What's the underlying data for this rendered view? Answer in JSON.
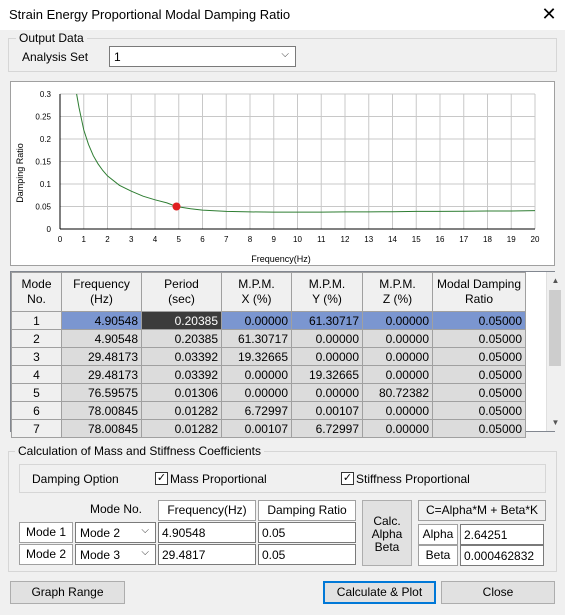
{
  "window": {
    "title": "Strain Energy Proportional Modal Damping Ratio"
  },
  "output": {
    "group_label": "Output Data",
    "analysis_set_label": "Analysis Set",
    "analysis_set_value": "1"
  },
  "chart_data": {
    "type": "line",
    "xlabel": "Frequency(Hz)",
    "ylabel": "Damping Ratio",
    "xlim": [
      0,
      20
    ],
    "ylim": [
      0,
      0.3
    ],
    "x_ticks": [
      "0",
      "1",
      "2",
      "3",
      "4",
      "5",
      "6",
      "7",
      "8",
      "9",
      "10",
      "11",
      "12",
      "13",
      "14",
      "15",
      "16",
      "17",
      "18",
      "19",
      "20"
    ],
    "y_ticks": [
      "0",
      "0.05",
      "0.1",
      "0.15",
      "0.2",
      "0.25",
      "0.3"
    ],
    "grid": true,
    "series": [
      {
        "color": "#2e7d32",
        "x": [
          0.7,
          0.8,
          0.9,
          1.0,
          1.2,
          1.4,
          1.6,
          1.8,
          2.0,
          2.5,
          3.0,
          3.5,
          4.0,
          4.5,
          4.9,
          5.5,
          6.0,
          7.0,
          8.0,
          9.0,
          10,
          11,
          12,
          13,
          14,
          15,
          16,
          17,
          18,
          19,
          20
        ],
        "y": [
          0.3,
          0.27,
          0.245,
          0.22,
          0.188,
          0.163,
          0.145,
          0.13,
          0.118,
          0.097,
          0.084,
          0.073,
          0.065,
          0.058,
          0.05,
          0.045,
          0.042,
          0.039,
          0.038,
          0.0375,
          0.0375,
          0.0375,
          0.038,
          0.038,
          0.0385,
          0.039,
          0.039,
          0.0395,
          0.04,
          0.04,
          0.041
        ]
      }
    ],
    "marker": {
      "x": 4.90548,
      "y": 0.05,
      "color": "#e02020"
    }
  },
  "table": {
    "headers": [
      "Mode\nNo.",
      "Frequency\n(Hz)",
      "Period\n(sec)",
      "M.P.M.\nX (%)",
      "M.P.M.\nY (%)",
      "M.P.M.\nZ (%)",
      "Modal Damping\nRatio"
    ],
    "rows": [
      [
        "1",
        "4.90548",
        "0.20385",
        "0.00000",
        "61.30717",
        "0.00000",
        "0.05000"
      ],
      [
        "2",
        "4.90548",
        "0.20385",
        "61.30717",
        "0.00000",
        "0.00000",
        "0.05000"
      ],
      [
        "3",
        "29.48173",
        "0.03392",
        "19.32665",
        "0.00000",
        "0.00000",
        "0.05000"
      ],
      [
        "4",
        "29.48173",
        "0.03392",
        "0.00000",
        "19.32665",
        "0.00000",
        "0.05000"
      ],
      [
        "5",
        "76.59575",
        "0.01306",
        "0.00000",
        "0.00000",
        "80.72382",
        "0.05000"
      ],
      [
        "6",
        "78.00845",
        "0.01282",
        "6.72997",
        "0.00107",
        "0.00000",
        "0.05000"
      ],
      [
        "7",
        "78.00845",
        "0.01282",
        "0.00107",
        "6.72997",
        "0.00000",
        "0.05000"
      ]
    ]
  },
  "calc": {
    "group_label": "Calculation of Mass and Stiffness Coefficients",
    "damping_option_label": "Damping Option",
    "mass_prop_label": "Mass Proportional",
    "mass_prop_checked": "✓",
    "stiff_prop_label": "Stiffness Proportional",
    "stiff_prop_checked": "✓",
    "col_mode": "Mode No.",
    "col_freq": "Frequency(Hz)",
    "col_damp": "Damping Ratio",
    "mode1_label": "Mode 1",
    "mode2_label": "Mode 2",
    "mode1_select": "Mode 2",
    "mode2_select": "Mode 3",
    "freq1": "4.90548",
    "freq2": "29.4817",
    "damp1": "0.05",
    "damp2": "0.05",
    "calc_button_lines": [
      "Calc.",
      "Alpha",
      "Beta"
    ],
    "formula": "C=Alpha*M + Beta*K",
    "alpha_label": "Alpha",
    "alpha_value": "2.64251",
    "beta_label": "Beta",
    "beta_value": "0.000462832"
  },
  "buttons": {
    "graph_range": "Graph Range",
    "calc_plot": "Calculate & Plot",
    "close": "Close"
  },
  "icons": {
    "close": "✕",
    "combo_arrow": "⌵",
    "scroll_up": "▲",
    "scroll_down": "▼"
  }
}
